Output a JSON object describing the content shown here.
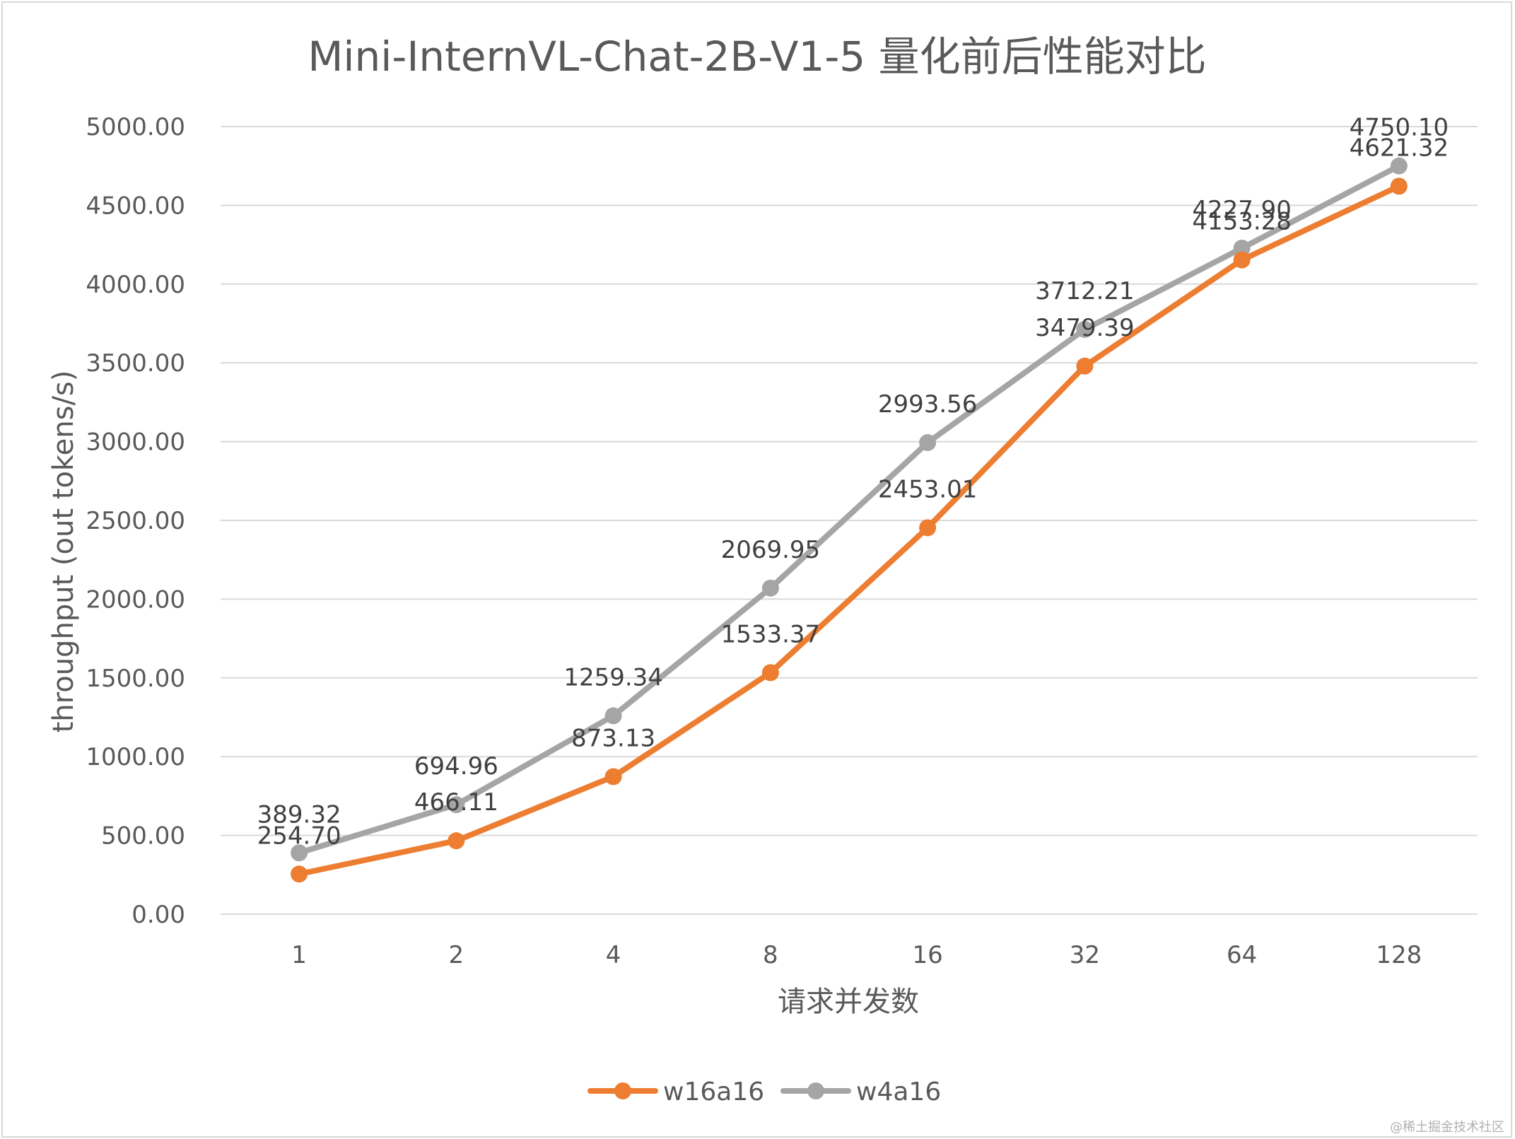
{
  "chart_data": {
    "type": "line",
    "title": "Mini-InternVL-Chat-2B-V1-5 量化前后性能对比",
    "xlabel": "请求并发数",
    "ylabel": "throughput (out tokens/s)",
    "categories": [
      "1",
      "2",
      "4",
      "8",
      "16",
      "32",
      "64",
      "128"
    ],
    "ylim": [
      0,
      5000
    ],
    "yticks": [
      "0.00",
      "500.00",
      "1000.00",
      "1500.00",
      "2000.00",
      "2500.00",
      "3000.00",
      "3500.00",
      "4000.00",
      "4500.00",
      "5000.00"
    ],
    "grid": true,
    "legend": "bottom",
    "series": [
      {
        "name": "w16a16",
        "color": "#ED7D31",
        "values": [
          254.7,
          466.11,
          873.13,
          1533.37,
          2453.01,
          3479.39,
          4153.28,
          4621.32
        ],
        "labels": [
          "254.70",
          "466.11",
          "873.13",
          "1533.37",
          "2453.01",
          "3479.39",
          "4153.28",
          "4621.32"
        ]
      },
      {
        "name": "w4a16",
        "color": "#A5A5A5",
        "values": [
          389.32,
          694.96,
          1259.34,
          2069.95,
          2993.56,
          3712.21,
          4227.9,
          4750.1
        ],
        "labels": [
          "389.32",
          "694.96",
          "1259.34",
          "2069.95",
          "2993.56",
          "3712.21",
          "4227.90",
          "4750.10"
        ]
      }
    ]
  },
  "watermark": "@稀土掘金技术社区"
}
